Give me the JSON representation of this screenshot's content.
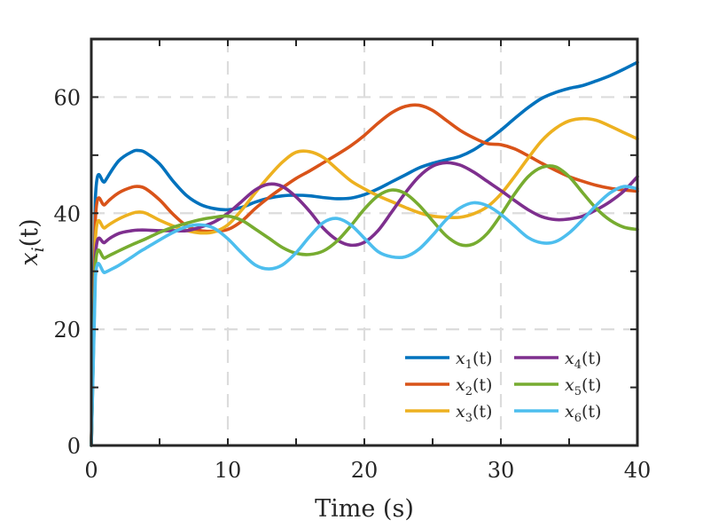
{
  "chart_data": {
    "type": "line",
    "title": "",
    "xlabel": "Time (s)",
    "ylabel": "x_i(t)",
    "xlim": [
      0,
      40
    ],
    "ylim": [
      0,
      70
    ],
    "xticks": [
      0,
      10,
      20,
      30,
      40
    ],
    "yticks": [
      0,
      20,
      40,
      60
    ],
    "xtick_labels": [
      "0",
      "10",
      "20",
      "30",
      "40"
    ],
    "ytick_labels": [
      "0",
      "20",
      "40",
      "60"
    ],
    "grid": true,
    "legend_position": "bottom-right",
    "x": [
      0,
      0.3,
      1,
      2,
      3,
      3.5,
      4,
      5,
      6,
      7,
      8,
      9,
      10,
      11,
      12,
      13,
      14,
      15,
      16,
      17,
      18,
      19,
      20,
      21,
      22,
      23,
      24,
      25,
      26,
      27,
      28,
      29,
      30,
      31,
      32,
      33,
      34,
      35,
      36,
      37,
      38,
      39,
      40
    ],
    "series": [
      {
        "name": "x_1(t)",
        "color": "#0072BD",
        "values": [
          0,
          42.7,
          45.5,
          49.0,
          50.6,
          50.8,
          50.4,
          48.5,
          45.5,
          43.0,
          41.5,
          40.8,
          40.6,
          41.0,
          41.9,
          42.6,
          43.0,
          43.1,
          43.0,
          42.7,
          42.5,
          42.6,
          43.2,
          44.2,
          45.4,
          46.6,
          47.8,
          48.6,
          49.2,
          49.8,
          50.9,
          52.5,
          54.3,
          56.3,
          58.2,
          59.8,
          60.8,
          61.5,
          62.0,
          62.8,
          63.7,
          64.8,
          66.0
        ]
      },
      {
        "name": "x_2(t)",
        "color": "#D95319",
        "values": [
          0,
          39.0,
          41.5,
          43.5,
          44.5,
          44.6,
          44.2,
          42.3,
          39.8,
          37.8,
          37.0,
          36.9,
          37.2,
          38.6,
          40.8,
          42.7,
          44.4,
          46.0,
          47.3,
          48.7,
          50.1,
          51.6,
          53.4,
          55.5,
          57.3,
          58.4,
          58.6,
          57.7,
          56.0,
          54.3,
          53.0,
          52.0,
          51.8,
          51.1,
          49.9,
          48.6,
          47.4,
          46.3,
          45.5,
          44.8,
          44.3,
          44.0,
          43.8
        ]
      },
      {
        "name": "x_3(t)",
        "color": "#EDB120",
        "values": [
          0,
          35.5,
          37.5,
          39.0,
          40.0,
          40.2,
          40.0,
          38.8,
          37.8,
          37.0,
          36.6,
          36.8,
          38.0,
          40.5,
          43.5,
          46.3,
          48.8,
          50.5,
          50.6,
          49.6,
          47.6,
          45.6,
          44.2,
          43.0,
          42.0,
          41.0,
          40.1,
          39.5,
          39.3,
          39.3,
          39.9,
          41.1,
          43.3,
          46.3,
          49.5,
          52.5,
          54.6,
          55.9,
          56.3,
          56.0,
          55.0,
          53.9,
          52.8
        ]
      },
      {
        "name": "x_4(t)",
        "color": "#7E2F8E",
        "values": [
          0,
          32.5,
          35.0,
          36.5,
          37.0,
          37.1,
          37.1,
          37.0,
          37.0,
          37.0,
          37.6,
          38.5,
          40.0,
          42.0,
          44.0,
          45.0,
          44.6,
          42.8,
          40.3,
          37.4,
          35.4,
          34.5,
          35.0,
          37.0,
          40.2,
          43.5,
          46.3,
          48.1,
          48.7,
          48.3,
          47.1,
          45.5,
          43.9,
          42.2,
          40.6,
          39.4,
          38.9,
          39.0,
          39.5,
          40.6,
          42.0,
          43.8,
          46.3
        ]
      },
      {
        "name": "x_5(t)",
        "color": "#77AC30",
        "values": [
          0,
          31.0,
          32.3,
          33.5,
          34.6,
          35.1,
          35.6,
          36.7,
          37.6,
          38.3,
          38.9,
          39.3,
          39.5,
          38.8,
          37.3,
          35.7,
          34.1,
          33.1,
          32.9,
          33.5,
          35.2,
          37.8,
          40.7,
          43.0,
          44.0,
          43.4,
          41.4,
          38.7,
          36.1,
          34.6,
          34.7,
          36.5,
          39.7,
          43.3,
          46.3,
          47.9,
          48.0,
          46.3,
          43.5,
          40.8,
          38.8,
          37.6,
          37.2
        ]
      },
      {
        "name": "x_6(t)",
        "color": "#4DBEEE",
        "values": [
          0,
          29.0,
          29.8,
          31.0,
          32.5,
          33.3,
          34.0,
          35.4,
          36.7,
          37.7,
          38.0,
          37.4,
          35.6,
          33.2,
          31.1,
          30.4,
          31.1,
          33.2,
          36.0,
          38.4,
          39.1,
          38.0,
          35.7,
          33.4,
          32.5,
          32.5,
          33.8,
          36.2,
          38.9,
          40.9,
          41.8,
          41.3,
          39.8,
          37.8,
          35.8,
          34.9,
          35.1,
          36.6,
          38.9,
          41.4,
          43.5,
          44.6,
          44.2
        ]
      }
    ],
    "legend": [
      {
        "label_base": "x",
        "label_sub": "1",
        "label_tail": "(t)",
        "color": "#0072BD"
      },
      {
        "label_base": "x",
        "label_sub": "4",
        "label_tail": "(t)",
        "color": "#7E2F8E"
      },
      {
        "label_base": "x",
        "label_sub": "2",
        "label_tail": "(t)",
        "color": "#D95319"
      },
      {
        "label_base": "x",
        "label_sub": "5",
        "label_tail": "(t)",
        "color": "#77AC30"
      },
      {
        "label_base": "x",
        "label_sub": "3",
        "label_tail": "(t)",
        "color": "#EDB120"
      },
      {
        "label_base": "x",
        "label_sub": "6",
        "label_tail": "(t)",
        "color": "#4DBEEE"
      }
    ]
  }
}
